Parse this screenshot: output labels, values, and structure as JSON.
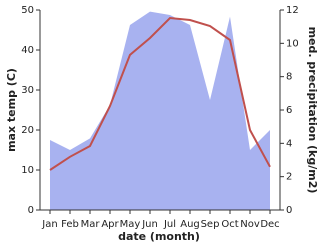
{
  "chart_data": {
    "type": "line-area",
    "x_label": "date (month)",
    "y_label": "max temp (C)",
    "y2_label": "med. precipitation (kg/m2)",
    "categories": [
      "Jan",
      "Feb",
      "Mar",
      "Apr",
      "May",
      "Jun",
      "Jul",
      "Aug",
      "Sep",
      "Oct",
      "Nov",
      "Dec"
    ],
    "ylim": [
      0,
      50
    ],
    "yticks": [
      0,
      10,
      20,
      30,
      40,
      50
    ],
    "y2lim": [
      0,
      12
    ],
    "y2ticks": [
      0,
      2,
      4,
      6,
      8,
      10,
      12
    ],
    "series": [
      {
        "name": "max temp (C)",
        "kind": "line",
        "color": "#c0504d",
        "values": [
          10,
          13.3,
          16,
          26,
          38.8,
          43,
          48,
          47.5,
          46,
          42.5,
          20,
          10.8
        ]
      },
      {
        "name": "med. precipitation (kg/m2)",
        "kind": "area",
        "axis": "y2",
        "color": "#a8b2f0",
        "values": [
          4.2,
          3.6,
          4.3,
          6.3,
          11.1,
          11.9,
          11.7,
          11.1,
          6.6,
          11.6,
          3.6,
          4.8
        ]
      }
    ]
  }
}
